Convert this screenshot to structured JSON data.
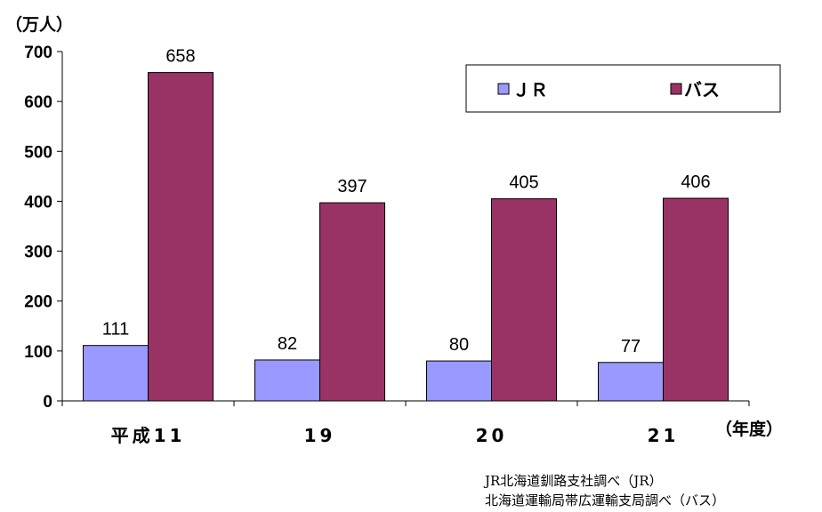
{
  "chart_data": {
    "type": "bar",
    "categories": [
      "平成11",
      "19",
      "20",
      "21"
    ],
    "series": [
      {
        "name": "ＪＲ",
        "values": [
          111,
          82,
          80,
          77
        ],
        "color": "#9999ff"
      },
      {
        "name": "バス",
        "values": [
          658,
          397,
          405,
          406
        ],
        "color": "#993366"
      }
    ],
    "ylabel": "（万人）",
    "xlabel": "（年度）",
    "ylim": [
      0,
      700
    ],
    "yticks": [
      0,
      100,
      200,
      300,
      400,
      500,
      600,
      700
    ],
    "grid": false,
    "legend": "top-right"
  },
  "source_lines": [
    "JR北海道釧路支社調べ（JR）",
    "北海道運輸局帯広運輸支局調べ（バス）"
  ]
}
